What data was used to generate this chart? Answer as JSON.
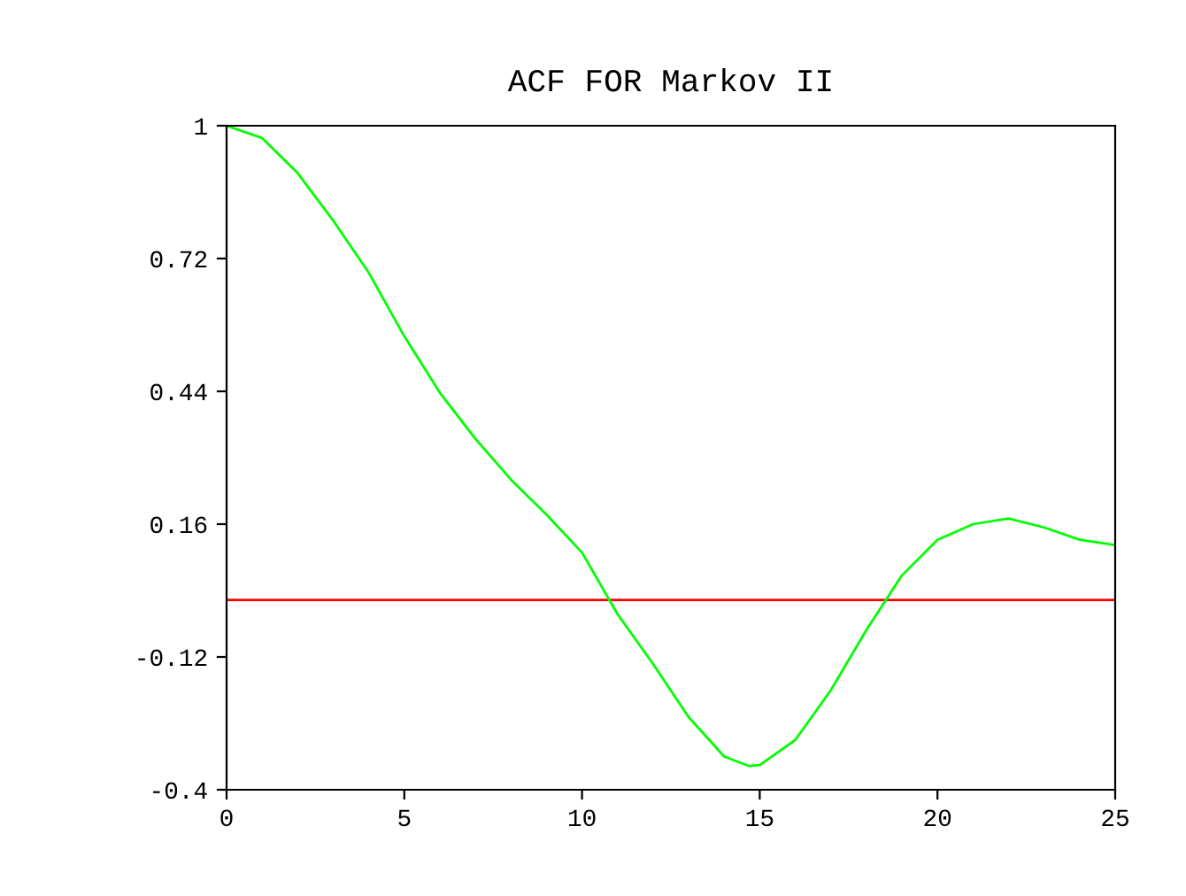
{
  "chart_data": {
    "type": "line",
    "title": "ACF FOR Markov II",
    "x": [
      0,
      1,
      2,
      3,
      4,
      5,
      6,
      7,
      8,
      9,
      10,
      11,
      12,
      13,
      14,
      14.7,
      15,
      16,
      17,
      18,
      19,
      20,
      21,
      22,
      23,
      24,
      25
    ],
    "series": [
      {
        "color": "#00ff00",
        "values": [
          1,
          0.974,
          0.9,
          0.8,
          0.69,
          0.556,
          0.437,
          0.34,
          0.254,
          0.18,
          0.1,
          -0.03,
          -0.135,
          -0.247,
          -0.33,
          -0.35,
          -0.348,
          -0.295,
          -0.19,
          -0.063,
          0.052,
          0.127,
          0.16,
          0.172,
          0.153,
          0.127,
          0.116
        ]
      }
    ],
    "ref_lines": [
      {
        "axis": "y",
        "value": 0,
        "color": "#ff0000"
      }
    ],
    "xlim": [
      0,
      25
    ],
    "ylim": [
      -0.4,
      1
    ],
    "xticks": [
      0,
      5,
      10,
      15,
      20,
      25
    ],
    "yticks": [
      1,
      0.72,
      0.44,
      0.16,
      -0.12,
      -0.4
    ],
    "grid": false,
    "legend": false
  }
}
